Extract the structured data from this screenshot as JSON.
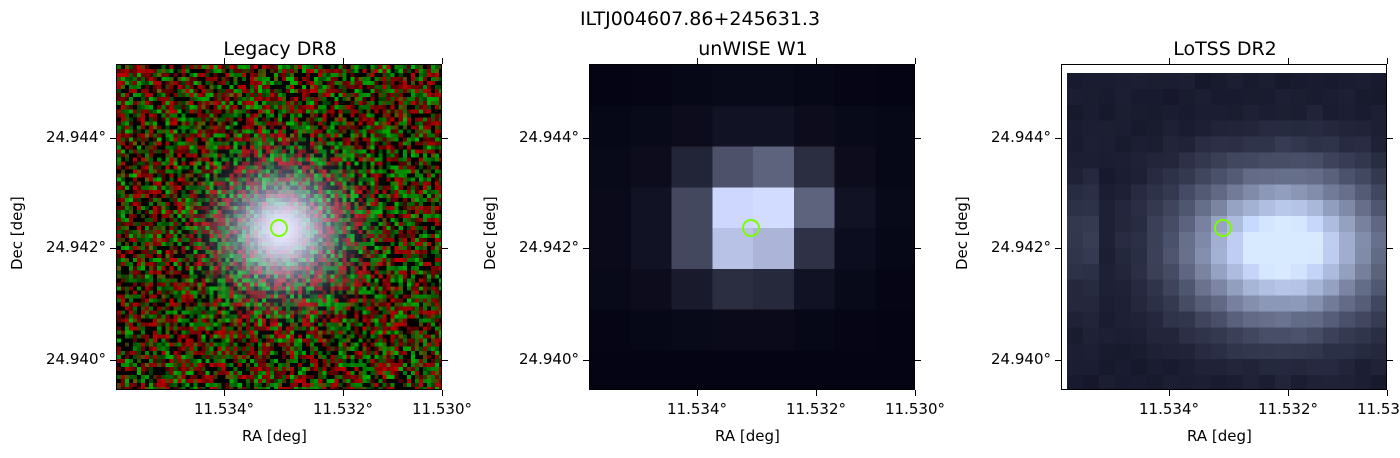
{
  "suptitle": "ILTJ004607.86+245631.3",
  "panels": [
    {
      "title": "Legacy DR8",
      "xlabel": "RA [deg]",
      "ylabel": "Dec [deg]"
    },
    {
      "title": "unWISE W1",
      "xlabel": "RA [deg]",
      "ylabel": "Dec [deg]"
    },
    {
      "title": "LoTSS DR2",
      "xlabel": "RA [deg]",
      "ylabel": "Dec [deg]"
    }
  ],
  "x_ticks": [
    "11.534°",
    "11.532°",
    "11.530°"
  ],
  "y_ticks": [
    "24.944°",
    "24.942°",
    "24.940°"
  ],
  "marker_color": "#7cfc00",
  "source_position": {
    "ra": "11.5328",
    "dec": "24.9424"
  }
}
